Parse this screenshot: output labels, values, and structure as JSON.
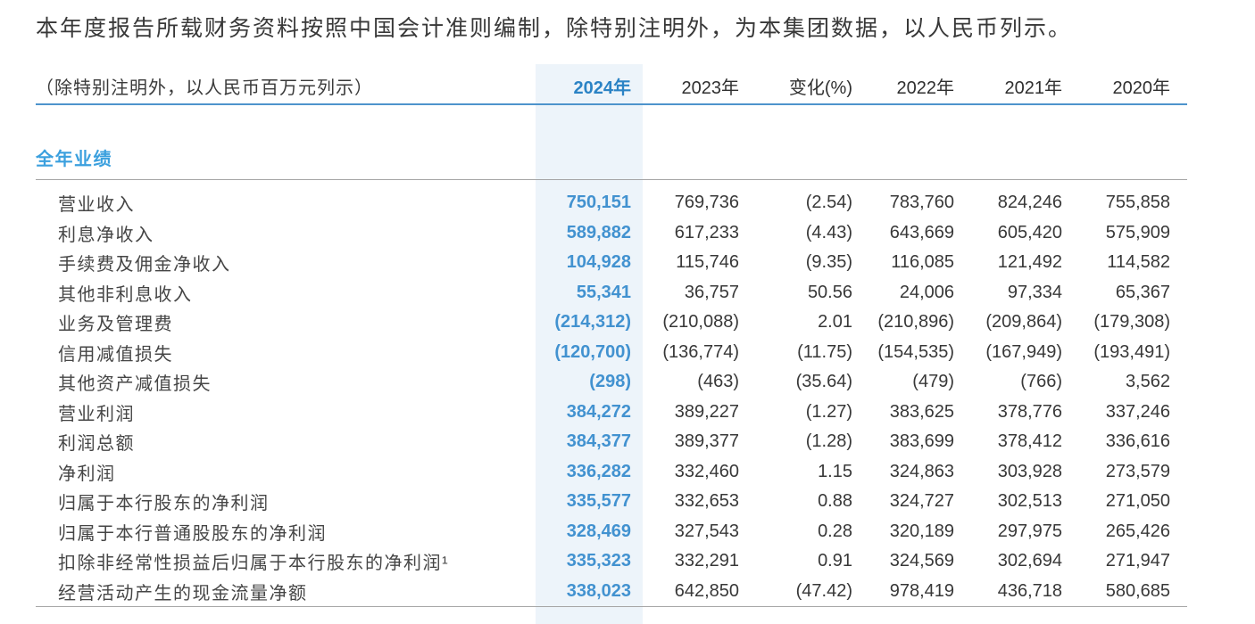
{
  "note": "本年度报告所载财务资料按照中国会计准则编制，除特别注明外，为本集团数据，以人民币列示。",
  "table": {
    "unit_label": "（除特别注明外，以人民币百万元列示）",
    "columns": [
      "2024年",
      "2023年",
      "变化(%)",
      "2022年",
      "2021年",
      "2020年"
    ],
    "section": "全年业绩",
    "rows": [
      {
        "label": "营业收入",
        "values": [
          "750,151",
          "769,736",
          "(2.54)",
          "783,760",
          "824,246",
          "755,858"
        ]
      },
      {
        "label": "利息净收入",
        "values": [
          "589,882",
          "617,233",
          "(4.43)",
          "643,669",
          "605,420",
          "575,909"
        ]
      },
      {
        "label": "手续费及佣金净收入",
        "values": [
          "104,928",
          "115,746",
          "(9.35)",
          "116,085",
          "121,492",
          "114,582"
        ]
      },
      {
        "label": "其他非利息收入",
        "values": [
          "55,341",
          "36,757",
          "50.56",
          "24,006",
          "97,334",
          "65,367"
        ]
      },
      {
        "label": "业务及管理费",
        "values": [
          "(214,312)",
          "(210,088)",
          "2.01",
          "(210,896)",
          "(209,864)",
          "(179,308)"
        ]
      },
      {
        "label": "信用减值损失",
        "values": [
          "(120,700)",
          "(136,774)",
          "(11.75)",
          "(154,535)",
          "(167,949)",
          "(193,491)"
        ]
      },
      {
        "label": "其他资产减值损失",
        "values": [
          "(298)",
          "(463)",
          "(35.64)",
          "(479)",
          "(766)",
          "3,562"
        ]
      },
      {
        "label": "营业利润",
        "values": [
          "384,272",
          "389,227",
          "(1.27)",
          "383,625",
          "378,776",
          "337,246"
        ]
      },
      {
        "label": "利润总额",
        "values": [
          "384,377",
          "389,377",
          "(1.28)",
          "383,699",
          "378,412",
          "336,616"
        ]
      },
      {
        "label": "净利润",
        "values": [
          "336,282",
          "332,460",
          "1.15",
          "324,863",
          "303,928",
          "273,579"
        ]
      },
      {
        "label": "归属于本行股东的净利润",
        "values": [
          "335,577",
          "332,653",
          "0.88",
          "324,727",
          "302,513",
          "271,050"
        ]
      },
      {
        "label": "归属于本行普通股股东的净利润",
        "values": [
          "328,469",
          "327,543",
          "0.28",
          "320,189",
          "297,975",
          "265,426"
        ]
      },
      {
        "label": "扣除非经常性损益后归属于本行股东的净利润¹",
        "values": [
          "335,323",
          "332,291",
          "0.91",
          "324,569",
          "302,694",
          "271,947"
        ]
      },
      {
        "label": "经营活动产生的现金流量净额",
        "values": [
          "338,023",
          "642,850",
          "(47.42)",
          "978,419",
          "436,718",
          "580,685"
        ]
      }
    ]
  },
  "colors": {
    "accent_blue": "#2b83c5",
    "value_blue": "#4292d0",
    "section_blue": "#3ba0de",
    "column_highlight": "#edf4fa",
    "header_rule": "#4e94cc",
    "divider_gray": "#a5a5a5",
    "text_dark": "#383838"
  }
}
